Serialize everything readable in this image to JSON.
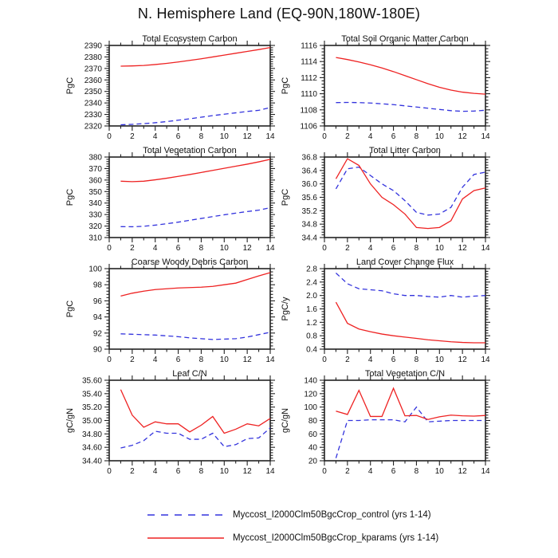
{
  "title": "N. Hemisphere Land (EQ-90N,180W-180E)",
  "colors": {
    "control": "#3333dd",
    "kparams": "#ee2222",
    "axis": "#222222"
  },
  "legend": {
    "items": [
      {
        "name": "control",
        "style": "dashed",
        "color": "#3333dd",
        "label": "Myccost_I2000Clm50BgcCrop_control (yrs 1-14)"
      },
      {
        "name": "kparams",
        "style": "solid",
        "color": "#ee2222",
        "label": "Myccost_I2000Clm50BgcCrop_kparams (yrs 1-14)"
      }
    ]
  },
  "chart_data": [
    {
      "type": "line",
      "title": "Total Ecosystem Carbon",
      "ylabel": "PgC",
      "xlim": [
        0,
        14
      ],
      "ylim": [
        2320,
        2390
      ],
      "xticks": [
        0,
        2,
        4,
        6,
        8,
        10,
        12,
        14
      ],
      "ytick_values": [
        2320,
        2330,
        2340,
        2350,
        2360,
        2370,
        2380,
        2390
      ],
      "ytick_labels": [
        "2320",
        "2330",
        "2340",
        "2350",
        "2360",
        "2370",
        "2380",
        "2390"
      ],
      "x": [
        1,
        2,
        3,
        4,
        5,
        6,
        7,
        8,
        9,
        10,
        11,
        12,
        13,
        14
      ],
      "series": [
        {
          "name": "control",
          "style": "dashed",
          "color": "#3333dd",
          "values": [
            2321,
            2321.4,
            2322,
            2322.8,
            2323.8,
            2325,
            2326.2,
            2327.6,
            2329,
            2330.2,
            2331.4,
            2332.6,
            2333.6,
            2336
          ]
        },
        {
          "name": "kparams",
          "style": "solid",
          "color": "#ee2222",
          "values": [
            2372,
            2372.2,
            2372.6,
            2373.4,
            2374.4,
            2375.6,
            2377,
            2378.4,
            2380,
            2381.6,
            2383.2,
            2384.8,
            2386.4,
            2388.2
          ]
        }
      ]
    },
    {
      "type": "line",
      "title": "Total Soil Organic Matter Carbon",
      "ylabel": "PgC",
      "xlim": [
        0,
        14
      ],
      "ylim": [
        1106,
        1116
      ],
      "xticks": [
        0,
        2,
        4,
        6,
        8,
        10,
        12,
        14
      ],
      "ytick_values": [
        1106,
        1108,
        1110,
        1112,
        1114,
        1116
      ],
      "ytick_labels": [
        "1106",
        "1108",
        "1110",
        "1112",
        "1114",
        "1116"
      ],
      "x": [
        1,
        2,
        3,
        4,
        5,
        6,
        7,
        8,
        9,
        10,
        11,
        12,
        13,
        14
      ],
      "series": [
        {
          "name": "control",
          "style": "dashed",
          "color": "#3333dd",
          "values": [
            1108.9,
            1108.92,
            1108.9,
            1108.85,
            1108.75,
            1108.65,
            1108.5,
            1108.35,
            1108.2,
            1108.05,
            1107.9,
            1107.82,
            1107.85,
            1107.95
          ]
        },
        {
          "name": "kparams",
          "style": "solid",
          "color": "#ee2222",
          "values": [
            1114.5,
            1114.25,
            1113.95,
            1113.6,
            1113.2,
            1112.75,
            1112.25,
            1111.75,
            1111.25,
            1110.8,
            1110.45,
            1110.2,
            1110.05,
            1109.95
          ]
        }
      ]
    },
    {
      "type": "line",
      "title": "Total Vegetation Carbon",
      "ylabel": "PgC",
      "xlim": [
        0,
        14
      ],
      "ylim": [
        310,
        380
      ],
      "xticks": [
        0,
        2,
        4,
        6,
        8,
        10,
        12,
        14
      ],
      "ytick_values": [
        310,
        320,
        330,
        340,
        350,
        360,
        370,
        380
      ],
      "ytick_labels": [
        "310",
        "320",
        "330",
        "340",
        "350",
        "360",
        "370",
        "380"
      ],
      "x": [
        1,
        2,
        3,
        4,
        5,
        6,
        7,
        8,
        9,
        10,
        11,
        12,
        13,
        14
      ],
      "series": [
        {
          "name": "control",
          "style": "dashed",
          "color": "#3333dd",
          "values": [
            319.5,
            319.4,
            319.8,
            320.8,
            322,
            323.4,
            325,
            326.6,
            328.2,
            329.8,
            331.2,
            332.6,
            333.8,
            336
          ]
        },
        {
          "name": "kparams",
          "style": "solid",
          "color": "#ee2222",
          "values": [
            359,
            358.6,
            359,
            360.2,
            361.6,
            363.2,
            364.8,
            366.6,
            368.4,
            370.2,
            372,
            373.8,
            375.8,
            378
          ]
        }
      ]
    },
    {
      "type": "line",
      "title": "Total Litter Carbon",
      "ylabel": "PgC",
      "xlim": [
        0,
        14
      ],
      "ylim": [
        34.4,
        36.8
      ],
      "xticks": [
        0,
        2,
        4,
        6,
        8,
        10,
        12,
        14
      ],
      "ytick_values": [
        34.4,
        34.8,
        35.2,
        35.6,
        36.0,
        36.4,
        36.8
      ],
      "ytick_labels": [
        "34.4",
        "34.8",
        "35.2",
        "35.6",
        "36.0",
        "36.4",
        "36.8"
      ],
      "x": [
        1,
        2,
        3,
        4,
        5,
        6,
        7,
        8,
        9,
        10,
        11,
        12,
        13,
        14
      ],
      "series": [
        {
          "name": "control",
          "style": "dashed",
          "color": "#3333dd",
          "values": [
            35.85,
            36.45,
            36.5,
            36.25,
            36.0,
            35.8,
            35.5,
            35.15,
            35.07,
            35.1,
            35.3,
            35.9,
            36.28,
            36.35
          ]
        },
        {
          "name": "kparams",
          "style": "solid",
          "color": "#ee2222",
          "values": [
            36.15,
            36.75,
            36.55,
            36.0,
            35.6,
            35.38,
            35.1,
            34.7,
            34.67,
            34.7,
            34.9,
            35.55,
            35.8,
            35.88
          ]
        }
      ]
    },
    {
      "type": "line",
      "title": "Coarse Woody Debris Carbon",
      "ylabel": "PgC",
      "xlim": [
        0,
        14
      ],
      "ylim": [
        90,
        100
      ],
      "xticks": [
        0,
        2,
        4,
        6,
        8,
        10,
        12,
        14
      ],
      "ytick_values": [
        90,
        92,
        94,
        96,
        98,
        100
      ],
      "ytick_labels": [
        "90",
        "92",
        "94",
        "96",
        "98",
        "100"
      ],
      "x": [
        1,
        2,
        3,
        4,
        5,
        6,
        7,
        8,
        9,
        10,
        11,
        12,
        13,
        14
      ],
      "series": [
        {
          "name": "control",
          "style": "dashed",
          "color": "#3333dd",
          "values": [
            91.9,
            91.85,
            91.8,
            91.75,
            91.65,
            91.55,
            91.4,
            91.3,
            91.2,
            91.25,
            91.3,
            91.5,
            91.8,
            92.1
          ]
        },
        {
          "name": "kparams",
          "style": "solid",
          "color": "#ee2222",
          "values": [
            96.6,
            96.95,
            97.2,
            97.4,
            97.5,
            97.6,
            97.65,
            97.7,
            97.8,
            98.0,
            98.2,
            98.65,
            99.1,
            99.5
          ]
        }
      ]
    },
    {
      "type": "line",
      "title": "Land Cover Change Flux",
      "ylabel": "PgC/y",
      "xlim": [
        0,
        14
      ],
      "ylim": [
        0.4,
        2.8
      ],
      "xticks": [
        0,
        2,
        4,
        6,
        8,
        10,
        12,
        14
      ],
      "ytick_values": [
        0.4,
        0.8,
        1.2,
        1.6,
        2.0,
        2.4,
        2.8
      ],
      "ytick_labels": [
        "0.4",
        "0.8",
        "1.2",
        "1.6",
        "2.0",
        "2.4",
        "2.8"
      ],
      "x": [
        1,
        2,
        3,
        4,
        5,
        6,
        7,
        8,
        9,
        10,
        11,
        12,
        13,
        14
      ],
      "series": [
        {
          "name": "control",
          "style": "dashed",
          "color": "#3333dd",
          "values": [
            2.67,
            2.35,
            2.2,
            2.17,
            2.14,
            2.05,
            2.0,
            2.0,
            1.97,
            1.95,
            2.0,
            1.95,
            1.98,
            2.0
          ]
        },
        {
          "name": "kparams",
          "style": "solid",
          "color": "#ee2222",
          "values": [
            1.8,
            1.17,
            1.0,
            0.92,
            0.85,
            0.8,
            0.76,
            0.72,
            0.68,
            0.65,
            0.62,
            0.6,
            0.59,
            0.59
          ]
        }
      ]
    },
    {
      "type": "line",
      "title": "Leaf C/N",
      "ylabel": "gC/gN",
      "xlim": [
        0,
        14
      ],
      "ylim": [
        34.4,
        35.6
      ],
      "xticks": [
        0,
        2,
        4,
        6,
        8,
        10,
        12,
        14
      ],
      "ytick_values": [
        34.4,
        34.6,
        34.8,
        35.0,
        35.2,
        35.4,
        35.6
      ],
      "ytick_labels": [
        "34.40",
        "34.60",
        "34.80",
        "35.00",
        "35.20",
        "35.40",
        "35.60"
      ],
      "x": [
        1,
        2,
        3,
        4,
        5,
        6,
        7,
        8,
        9,
        10,
        11,
        12,
        13,
        14
      ],
      "series": [
        {
          "name": "control",
          "style": "dashed",
          "color": "#3333dd",
          "values": [
            34.59,
            34.63,
            34.7,
            34.84,
            34.81,
            34.81,
            34.72,
            34.72,
            34.81,
            34.61,
            34.64,
            34.73,
            34.74,
            34.89
          ]
        },
        {
          "name": "kparams",
          "style": "solid",
          "color": "#ee2222",
          "values": [
            35.46,
            35.08,
            34.9,
            34.98,
            34.95,
            34.95,
            34.83,
            34.93,
            35.06,
            34.81,
            34.87,
            34.95,
            34.92,
            35.03
          ]
        }
      ]
    },
    {
      "type": "line",
      "title": "Total Vegetation C/N",
      "ylabel": "gC/gN",
      "xlim": [
        0,
        14
      ],
      "ylim": [
        20,
        140
      ],
      "xticks": [
        0,
        2,
        4,
        6,
        8,
        10,
        12,
        14
      ],
      "ytick_values": [
        20,
        40,
        60,
        80,
        100,
        120,
        140
      ],
      "ytick_labels": [
        "20",
        "40",
        "60",
        "80",
        "100",
        "120",
        "140"
      ],
      "x": [
        1,
        2,
        3,
        4,
        5,
        6,
        7,
        8,
        9,
        10,
        11,
        12,
        13,
        14
      ],
      "series": [
        {
          "name": "control",
          "style": "dashed",
          "color": "#3333dd",
          "values": [
            24,
            80,
            80,
            81,
            81,
            81,
            78,
            100,
            78,
            79,
            80,
            80,
            80,
            80
          ]
        },
        {
          "name": "kparams",
          "style": "solid",
          "color": "#ee2222",
          "values": [
            94,
            89,
            125,
            86,
            86,
            128,
            87,
            87.5,
            81.5,
            85.5,
            88,
            87,
            86.5,
            87.5
          ]
        }
      ]
    }
  ]
}
